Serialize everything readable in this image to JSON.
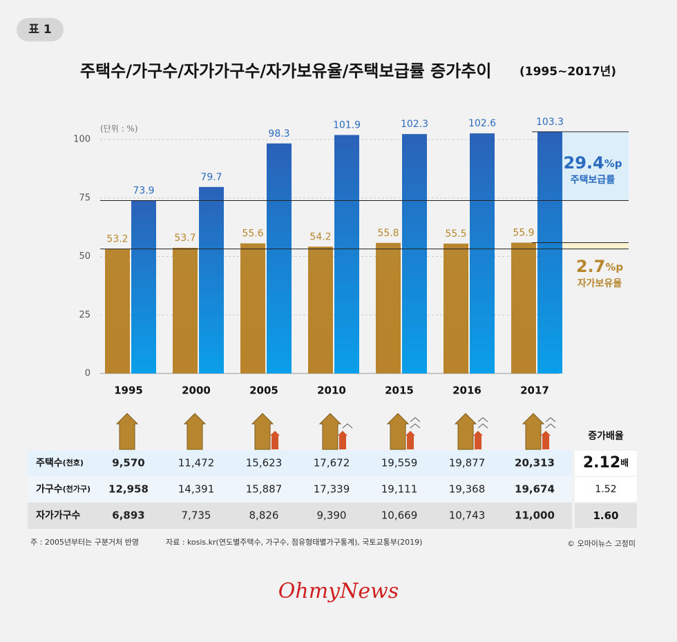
{
  "badge": "표 1",
  "chart_data": {
    "type": "bar",
    "title": "주택수/가구수/자가가구수/자가보유율/주택보급률 증가추이",
    "subtitle": "(1995~2017년)",
    "unit_label": "(단위 : %)",
    "categories": [
      "1995",
      "2000",
      "2005",
      "2010",
      "2015",
      "2016",
      "2017"
    ],
    "series": [
      {
        "name": "자가보유율",
        "color": "#b8862e",
        "values": [
          53.2,
          53.7,
          55.6,
          54.2,
          55.8,
          55.5,
          55.9
        ]
      },
      {
        "name": "주택보급률",
        "color": "#2a6bbf",
        "values": [
          73.9,
          79.7,
          98.3,
          101.9,
          102.3,
          102.6,
          103.3
        ]
      }
    ],
    "ylim": [
      0,
      100
    ],
    "yticks": [
      0,
      25,
      50,
      75,
      100
    ],
    "grid": true,
    "annotations": [
      {
        "value": "29.4",
        "unit": "%p",
        "series": 1
      },
      {
        "value": "2.7",
        "unit": "%p",
        "series": 0
      }
    ]
  },
  "table": {
    "header": "증가배율",
    "rows": [
      {
        "label": "주택수",
        "unit": "(천호)",
        "values": [
          "9,570",
          "11,472",
          "15,623",
          "17,672",
          "19,559",
          "19,877",
          "20,313"
        ],
        "ratio": "2.12",
        "ratio_unit": "배"
      },
      {
        "label": "가구수",
        "unit": "(천가구)",
        "values": [
          "12,958",
          "14,391",
          "15,887",
          "17,339",
          "19,111",
          "19,368",
          "19,674"
        ],
        "ratio": "1.52"
      },
      {
        "label": "자가가구수",
        "values": [
          "6,893",
          "7,735",
          "8,826",
          "9,390",
          "10,669",
          "10,743",
          "11,000"
        ],
        "ratio": "1.60"
      }
    ]
  },
  "footnote": "주 : 2005년부터는 구분거처 반영",
  "source": "자료 : kosis.kr(연도별주택수, 가구수, 점유형태별가구통계), 국토교통부(2019)",
  "credit": "© 오마이뉴스 고정미",
  "logo": "OhmyNews"
}
